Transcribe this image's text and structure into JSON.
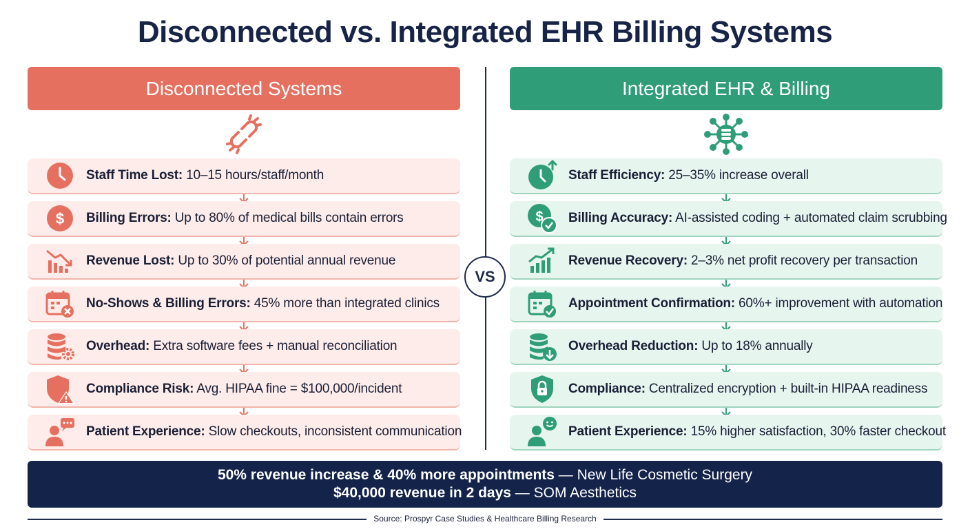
{
  "title": "Disconnected vs. Integrated EHR Billing Systems",
  "left": {
    "header": "Disconnected Systems",
    "header_icon": "broken-link-icon",
    "accent": "#e6705f",
    "rows": [
      {
        "icon": "clock-icon",
        "label": "Staff Time Lost:",
        "text": " 10–15 hours/staff/month"
      },
      {
        "icon": "dollar-icon",
        "label": "Billing Errors:",
        "text": " Up to 80% of medical bills contain errors"
      },
      {
        "icon": "declining-chart-icon",
        "label": "Revenue Lost:",
        "text": " Up to 30% of potential annual revenue"
      },
      {
        "icon": "calendar-x-icon",
        "label": "No-Shows & Billing Errors:",
        "text": " 45% more than integrated clinics"
      },
      {
        "icon": "database-gear-icon",
        "label": "Overhead:",
        "text": " Extra software fees + manual reconciliation"
      },
      {
        "icon": "shield-warning-icon",
        "label": "Compliance Risk:",
        "text": " Avg. HIPAA fine = $100,000/incident"
      },
      {
        "icon": "person-chat-icon",
        "label": "Patient Experience:",
        "text": " Slow checkouts, inconsistent communication"
      }
    ]
  },
  "right": {
    "header": "Integrated EHR & Billing",
    "header_icon": "network-hub-icon",
    "accent": "#2f9d78",
    "rows": [
      {
        "icon": "clock-up-icon",
        "label": "Staff Efficiency:",
        "text": " 25–35% increase overall"
      },
      {
        "icon": "dollar-check-icon",
        "label": "Billing Accuracy:",
        "text": " AI-assisted coding + automated claim scrubbing"
      },
      {
        "icon": "rising-chart-icon",
        "label": "Revenue Recovery:",
        "text": " 2–3% net profit recovery per transaction"
      },
      {
        "icon": "calendar-check-icon",
        "label": "Appointment Confirmation:",
        "text": " 60%+ improvement with automation"
      },
      {
        "icon": "database-down-icon",
        "label": "Overhead Reduction:",
        "text": " Up to 18% annually"
      },
      {
        "icon": "shield-lock-icon",
        "label": "Compliance:",
        "text": " Centralized encryption + built-in HIPAA readiness"
      },
      {
        "icon": "person-happy-icon",
        "label": "Patient Experience:",
        "text": " 15% higher satisfaction, 30% faster checkout"
      }
    ]
  },
  "vs": "VS",
  "banner": {
    "line1_bold": "50% revenue increase & 40% more appointments",
    "line1_rest": " — New Life Cosmetic Surgery",
    "line2_bold": "$40,000 revenue in 2 days",
    "line2_rest": " — SOM Aesthetics"
  },
  "source": "Source: Prospyr Case Studies & Healthcare Billing Research"
}
